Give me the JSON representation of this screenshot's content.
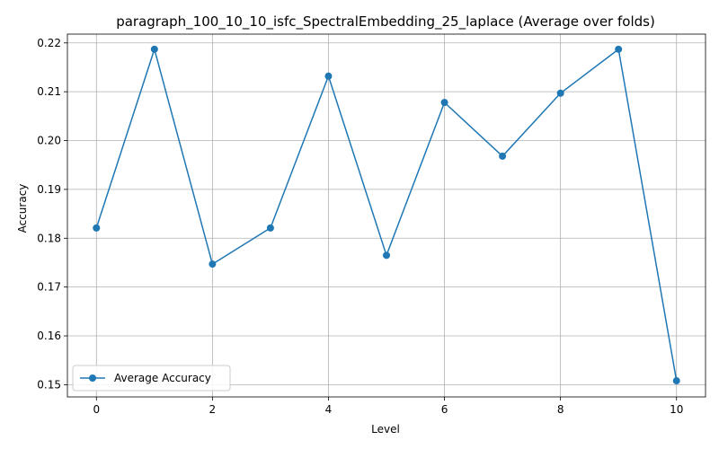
{
  "chart_data": {
    "type": "line",
    "title": "paragraph_100_10_10_isfc_SpectralEmbedding_25_laplace (Average over folds)",
    "xlabel": "Level",
    "ylabel": "Accuracy",
    "xlim": [
      -0.5,
      10.5
    ],
    "ylim": [
      0.1475,
      0.2218
    ],
    "x_ticks": [
      0,
      2,
      4,
      6,
      8,
      10
    ],
    "x_tick_labels": [
      "0",
      "2",
      "4",
      "6",
      "8",
      "10"
    ],
    "y_ticks": [
      0.15,
      0.16,
      0.17,
      0.18,
      0.19,
      0.2,
      0.21,
      0.22
    ],
    "y_tick_labels": [
      "0.15",
      "0.16",
      "0.17",
      "0.18",
      "0.19",
      "0.20",
      "0.21",
      "0.22"
    ],
    "grid": true,
    "legend_position": "lower-left",
    "series": [
      {
        "name": "Average Accuracy",
        "color": "#1f77b4",
        "marker": "circle",
        "x": [
          0,
          1,
          2,
          3,
          4,
          5,
          6,
          7,
          8,
          9,
          10
        ],
        "values": [
          0.1821,
          0.2187,
          0.1747,
          0.1821,
          0.2132,
          0.1765,
          0.2078,
          0.1968,
          0.2097,
          0.2187,
          0.1508
        ]
      }
    ]
  }
}
